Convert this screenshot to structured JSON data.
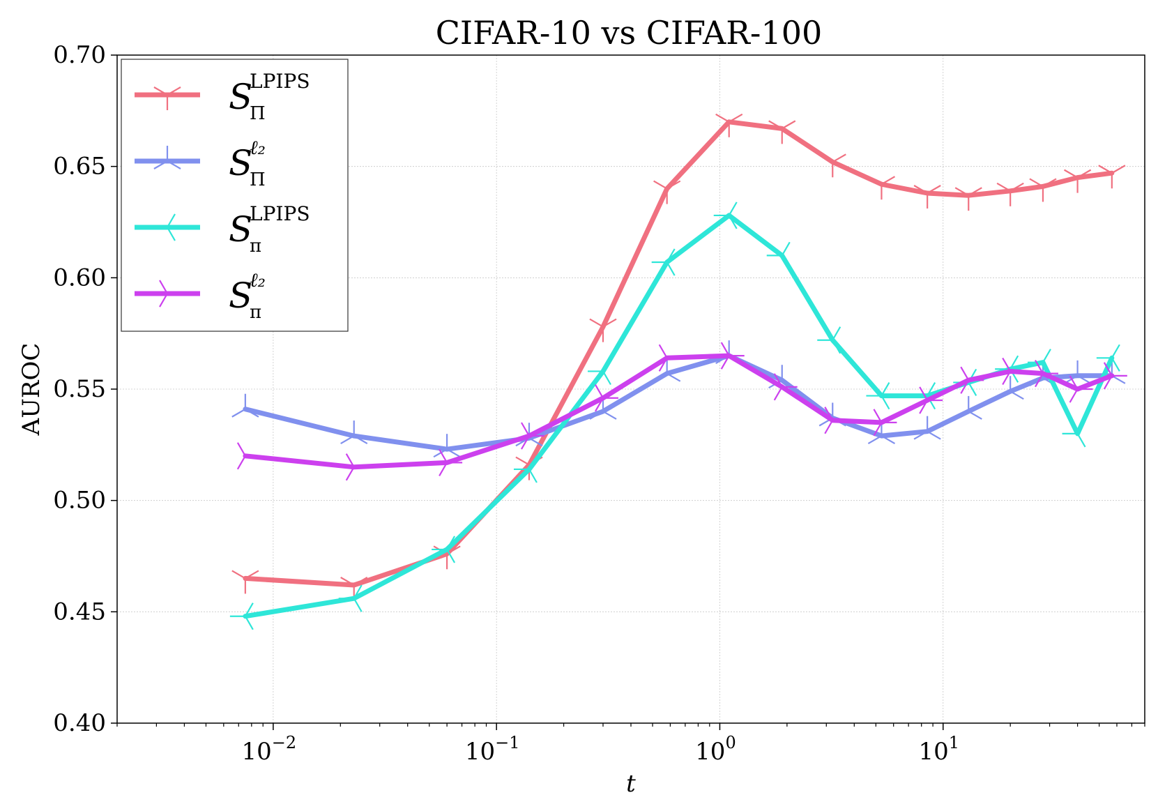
{
  "chart_data": {
    "type": "line",
    "title": "CIFAR-10 vs CIFAR-100",
    "xlabel": "t",
    "ylabel": "AUROC",
    "xscale": "log",
    "xlim": [
      0.002,
      80
    ],
    "ylim": [
      0.4,
      0.7
    ],
    "xticks": [
      {
        "value": 0.01,
        "base": "10",
        "exp": "−2"
      },
      {
        "value": 0.1,
        "base": "10",
        "exp": "−1"
      },
      {
        "value": 1,
        "base": "10",
        "exp": "0"
      },
      {
        "value": 10,
        "base": "10",
        "exp": "1"
      }
    ],
    "yticks": [
      "0.40",
      "0.45",
      "0.50",
      "0.55",
      "0.60",
      "0.65",
      "0.70"
    ],
    "grid": true,
    "legend_position": "top-left",
    "x": [
      0.0075,
      0.023,
      0.06,
      0.14,
      0.3,
      0.58,
      1.1,
      1.9,
      3.2,
      5.3,
      8.5,
      13,
      20,
      28,
      40,
      57
    ],
    "series": [
      {
        "name": "S_Π^LPIPS",
        "legend": {
          "main": "S",
          "sub": "Π",
          "sup": "LPIPS",
          "sup_italic": false
        },
        "color": "#f07080",
        "marker": "tri_down",
        "values": [
          0.465,
          0.462,
          0.476,
          0.516,
          0.578,
          0.64,
          0.67,
          0.667,
          0.652,
          0.642,
          0.638,
          0.637,
          0.639,
          0.641,
          0.645,
          0.647
        ]
      },
      {
        "name": "S_Π^ℓ2",
        "legend": {
          "main": "S",
          "sub": "Π",
          "sup": "ℓ₂",
          "sup_italic": true
        },
        "color": "#8090ee",
        "marker": "tri_up",
        "values": [
          0.541,
          0.529,
          0.523,
          0.528,
          0.54,
          0.557,
          0.565,
          0.554,
          0.537,
          0.529,
          0.531,
          0.54,
          0.549,
          0.555,
          0.556,
          0.556
        ]
      },
      {
        "name": "S_π^LPIPS",
        "legend": {
          "main": "S",
          "sub": "π",
          "sup": "LPIPS",
          "sup_italic": false
        },
        "color": "#2ee6d8",
        "marker": "tri_left",
        "values": [
          0.448,
          0.456,
          0.478,
          0.514,
          0.558,
          0.607,
          0.628,
          0.61,
          0.572,
          0.547,
          0.547,
          0.553,
          0.559,
          0.562,
          0.53,
          0.564
        ]
      },
      {
        "name": "S_π^ℓ2",
        "legend": {
          "main": "S",
          "sub": "π",
          "sup": "ℓ₂",
          "sup_italic": true
        },
        "color": "#cc40ee",
        "marker": "tri_right",
        "values": [
          0.52,
          0.515,
          0.517,
          0.529,
          0.546,
          0.564,
          0.565,
          0.551,
          0.536,
          0.535,
          0.545,
          0.554,
          0.558,
          0.557,
          0.55,
          0.556
        ]
      }
    ]
  }
}
